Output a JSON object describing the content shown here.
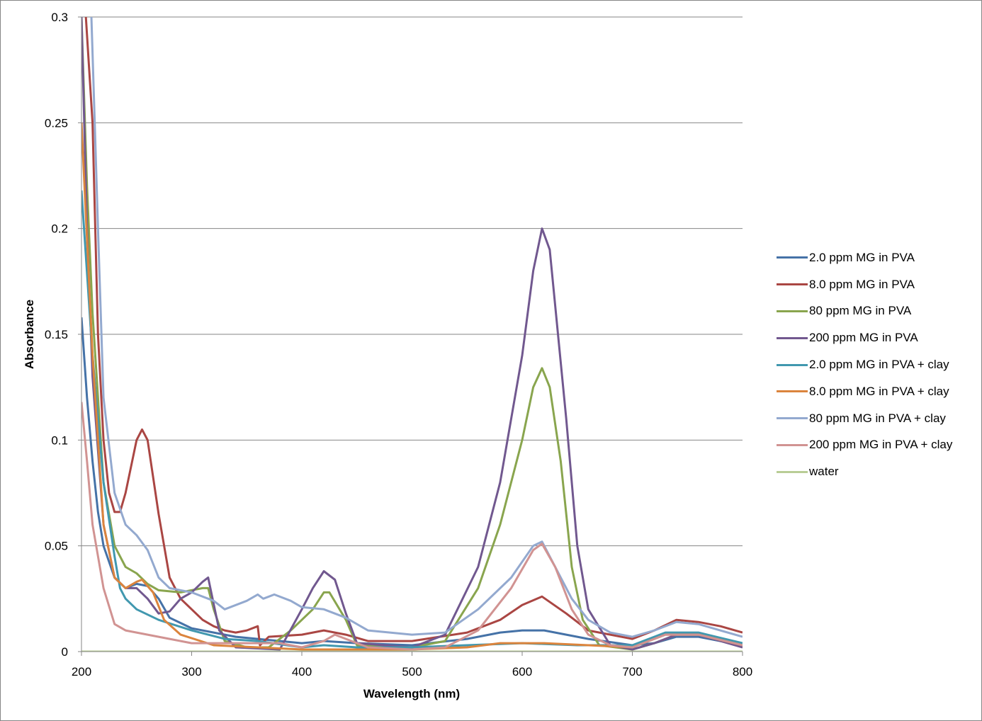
{
  "chart_data": {
    "type": "line",
    "title": "",
    "xlabel": "Wavelength (nm)",
    "ylabel": "Absorbance",
    "xlim": [
      200,
      800
    ],
    "ylim": [
      0,
      0.3
    ],
    "xticks": [
      "200",
      "300",
      "400",
      "500",
      "600",
      "700",
      "800"
    ],
    "yticks": [
      "0",
      "0.05",
      "0.1",
      "0.15",
      "0.2",
      "0.25",
      "0.3"
    ],
    "grid": "horizontal",
    "legend_position": "right",
    "series": [
      {
        "name": "2.0 ppm MG in PVA",
        "color": "#4572A7",
        "points": [
          [
            200,
            0.158
          ],
          [
            205,
            0.12
          ],
          [
            210,
            0.09
          ],
          [
            215,
            0.066
          ],
          [
            220,
            0.05
          ],
          [
            230,
            0.035
          ],
          [
            240,
            0.03
          ],
          [
            250,
            0.032
          ],
          [
            260,
            0.031
          ],
          [
            270,
            0.025
          ],
          [
            280,
            0.016
          ],
          [
            300,
            0.011
          ],
          [
            320,
            0.009
          ],
          [
            340,
            0.007
          ],
          [
            360,
            0.006
          ],
          [
            400,
            0.004
          ],
          [
            420,
            0.005
          ],
          [
            450,
            0.004
          ],
          [
            500,
            0.003
          ],
          [
            550,
            0.006
          ],
          [
            580,
            0.009
          ],
          [
            600,
            0.01
          ],
          [
            620,
            0.01
          ],
          [
            640,
            0.008
          ],
          [
            660,
            0.006
          ],
          [
            700,
            0.003
          ],
          [
            720,
            0.004
          ],
          [
            740,
            0.007
          ],
          [
            760,
            0.007
          ],
          [
            780,
            0.005
          ],
          [
            800,
            0.003
          ]
        ]
      },
      {
        "name": "8.0 ppm MG in PVA",
        "color": "#AA4643",
        "points": [
          [
            204,
            0.3
          ],
          [
            210,
            0.25
          ],
          [
            215,
            0.15
          ],
          [
            220,
            0.1
          ],
          [
            225,
            0.075
          ],
          [
            230,
            0.066
          ],
          [
            235,
            0.066
          ],
          [
            240,
            0.075
          ],
          [
            250,
            0.1
          ],
          [
            255,
            0.105
          ],
          [
            260,
            0.1
          ],
          [
            270,
            0.065
          ],
          [
            280,
            0.035
          ],
          [
            290,
            0.025
          ],
          [
            300,
            0.02
          ],
          [
            310,
            0.015
          ],
          [
            320,
            0.012
          ],
          [
            330,
            0.01
          ],
          [
            340,
            0.009
          ],
          [
            350,
            0.01
          ],
          [
            360,
            0.012
          ],
          [
            362,
            0.003
          ],
          [
            370,
            0.007
          ],
          [
            400,
            0.008
          ],
          [
            420,
            0.01
          ],
          [
            440,
            0.008
          ],
          [
            460,
            0.005
          ],
          [
            500,
            0.005
          ],
          [
            550,
            0.009
          ],
          [
            580,
            0.015
          ],
          [
            600,
            0.022
          ],
          [
            618,
            0.026
          ],
          [
            640,
            0.018
          ],
          [
            660,
            0.01
          ],
          [
            700,
            0.006
          ],
          [
            720,
            0.01
          ],
          [
            740,
            0.015
          ],
          [
            760,
            0.014
          ],
          [
            780,
            0.012
          ],
          [
            800,
            0.009
          ]
        ]
      },
      {
        "name": "80 ppm MG in PVA",
        "color": "#89A54E",
        "points": [
          [
            200,
            0.3
          ],
          [
            205,
            0.22
          ],
          [
            210,
            0.16
          ],
          [
            220,
            0.08
          ],
          [
            230,
            0.05
          ],
          [
            240,
            0.04
          ],
          [
            250,
            0.037
          ],
          [
            260,
            0.032
          ],
          [
            270,
            0.029
          ],
          [
            290,
            0.028
          ],
          [
            310,
            0.03
          ],
          [
            315,
            0.03
          ],
          [
            320,
            0.02
          ],
          [
            330,
            0.005
          ],
          [
            350,
            0.002
          ],
          [
            370,
            0.002
          ],
          [
            390,
            0.01
          ],
          [
            410,
            0.02
          ],
          [
            420,
            0.028
          ],
          [
            425,
            0.028
          ],
          [
            440,
            0.015
          ],
          [
            450,
            0.003
          ],
          [
            500,
            0.002
          ],
          [
            530,
            0.005
          ],
          [
            560,
            0.03
          ],
          [
            580,
            0.06
          ],
          [
            600,
            0.1
          ],
          [
            610,
            0.125
          ],
          [
            618,
            0.134
          ],
          [
            625,
            0.125
          ],
          [
            635,
            0.09
          ],
          [
            645,
            0.04
          ],
          [
            655,
            0.015
          ],
          [
            670,
            0.003
          ],
          [
            700,
            0.001
          ],
          [
            720,
            0.004
          ],
          [
            740,
            0.008
          ],
          [
            760,
            0.008
          ],
          [
            780,
            0.006
          ],
          [
            800,
            0.002
          ]
        ]
      },
      {
        "name": "200 ppm MG in PVA",
        "color": "#71588F",
        "points": [
          [
            200,
            0.3
          ],
          [
            205,
            0.2
          ],
          [
            210,
            0.13
          ],
          [
            220,
            0.06
          ],
          [
            230,
            0.035
          ],
          [
            240,
            0.03
          ],
          [
            250,
            0.03
          ],
          [
            260,
            0.025
          ],
          [
            270,
            0.018
          ],
          [
            280,
            0.019
          ],
          [
            290,
            0.025
          ],
          [
            300,
            0.028
          ],
          [
            310,
            0.033
          ],
          [
            315,
            0.035
          ],
          [
            325,
            0.01
          ],
          [
            340,
            0.002
          ],
          [
            380,
            0.001
          ],
          [
            400,
            0.02
          ],
          [
            410,
            0.03
          ],
          [
            420,
            0.038
          ],
          [
            430,
            0.034
          ],
          [
            440,
            0.018
          ],
          [
            450,
            0.004
          ],
          [
            500,
            0.002
          ],
          [
            530,
            0.008
          ],
          [
            560,
            0.04
          ],
          [
            580,
            0.08
          ],
          [
            600,
            0.14
          ],
          [
            610,
            0.18
          ],
          [
            618,
            0.2
          ],
          [
            625,
            0.19
          ],
          [
            640,
            0.11
          ],
          [
            650,
            0.05
          ],
          [
            660,
            0.02
          ],
          [
            680,
            0.003
          ],
          [
            700,
            0.001
          ],
          [
            720,
            0.004
          ],
          [
            740,
            0.008
          ],
          [
            760,
            0.008
          ],
          [
            800,
            0.002
          ]
        ]
      },
      {
        "name": "2.0 ppm MG in PVA + clay",
        "color": "#4198AF",
        "points": [
          [
            200,
            0.218
          ],
          [
            210,
            0.14
          ],
          [
            220,
            0.08
          ],
          [
            230,
            0.045
          ],
          [
            235,
            0.03
          ],
          [
            240,
            0.025
          ],
          [
            250,
            0.02
          ],
          [
            270,
            0.015
          ],
          [
            300,
            0.01
          ],
          [
            330,
            0.006
          ],
          [
            360,
            0.005
          ],
          [
            400,
            0.002
          ],
          [
            420,
            0.003
          ],
          [
            450,
            0.002
          ],
          [
            500,
            0.002
          ],
          [
            550,
            0.003
          ],
          [
            600,
            0.004
          ],
          [
            650,
            0.003
          ],
          [
            700,
            0.003
          ],
          [
            730,
            0.009
          ],
          [
            760,
            0.009
          ],
          [
            800,
            0.004
          ]
        ]
      },
      {
        "name": "8.0 ppm MG in PVA + clay",
        "color": "#DB843D",
        "points": [
          [
            200,
            0.25
          ],
          [
            210,
            0.14
          ],
          [
            220,
            0.06
          ],
          [
            230,
            0.035
          ],
          [
            240,
            0.03
          ],
          [
            250,
            0.033
          ],
          [
            255,
            0.034
          ],
          [
            265,
            0.028
          ],
          [
            275,
            0.015
          ],
          [
            290,
            0.008
          ],
          [
            320,
            0.003
          ],
          [
            360,
            0.002
          ],
          [
            400,
            0.001
          ],
          [
            450,
            0.001
          ],
          [
            500,
            0.001
          ],
          [
            550,
            0.002
          ],
          [
            580,
            0.004
          ],
          [
            620,
            0.004
          ],
          [
            660,
            0.003
          ],
          [
            700,
            0.002
          ],
          [
            730,
            0.008
          ],
          [
            760,
            0.008
          ],
          [
            800,
            0.003
          ]
        ]
      },
      {
        "name": "80 ppm MG in PVA + clay",
        "color": "#93A9CF",
        "points": [
          [
            209,
            0.3
          ],
          [
            212,
            0.25
          ],
          [
            215,
            0.2
          ],
          [
            220,
            0.12
          ],
          [
            230,
            0.075
          ],
          [
            240,
            0.06
          ],
          [
            250,
            0.055
          ],
          [
            260,
            0.048
          ],
          [
            270,
            0.035
          ],
          [
            280,
            0.03
          ],
          [
            300,
            0.028
          ],
          [
            320,
            0.024
          ],
          [
            330,
            0.02
          ],
          [
            350,
            0.024
          ],
          [
            360,
            0.027
          ],
          [
            365,
            0.025
          ],
          [
            375,
            0.027
          ],
          [
            390,
            0.024
          ],
          [
            400,
            0.021
          ],
          [
            420,
            0.02
          ],
          [
            440,
            0.016
          ],
          [
            460,
            0.01
          ],
          [
            500,
            0.008
          ],
          [
            530,
            0.009
          ],
          [
            560,
            0.02
          ],
          [
            590,
            0.035
          ],
          [
            610,
            0.05
          ],
          [
            618,
            0.052
          ],
          [
            630,
            0.04
          ],
          [
            645,
            0.025
          ],
          [
            660,
            0.015
          ],
          [
            680,
            0.009
          ],
          [
            700,
            0.007
          ],
          [
            720,
            0.01
          ],
          [
            740,
            0.014
          ],
          [
            760,
            0.013
          ],
          [
            800,
            0.007
          ]
        ]
      },
      {
        "name": "200 ppm MG in PVA + clay",
        "color": "#D19392",
        "points": [
          [
            200,
            0.118
          ],
          [
            205,
            0.09
          ],
          [
            210,
            0.06
          ],
          [
            220,
            0.03
          ],
          [
            230,
            0.013
          ],
          [
            240,
            0.01
          ],
          [
            260,
            0.008
          ],
          [
            280,
            0.006
          ],
          [
            300,
            0.004
          ],
          [
            340,
            0.004
          ],
          [
            380,
            0.004
          ],
          [
            400,
            0.002
          ],
          [
            420,
            0.005
          ],
          [
            430,
            0.008
          ],
          [
            440,
            0.006
          ],
          [
            460,
            0.002
          ],
          [
            500,
            0.001
          ],
          [
            530,
            0.002
          ],
          [
            560,
            0.01
          ],
          [
            590,
            0.03
          ],
          [
            610,
            0.048
          ],
          [
            618,
            0.051
          ],
          [
            630,
            0.04
          ],
          [
            645,
            0.02
          ],
          [
            660,
            0.008
          ],
          [
            680,
            0.003
          ],
          [
            700,
            0.002
          ],
          [
            730,
            0.008
          ],
          [
            760,
            0.008
          ],
          [
            800,
            0.003
          ]
        ]
      },
      {
        "name": "water",
        "color": "#B9CD96",
        "points": [
          [
            200,
            0
          ],
          [
            800,
            0
          ]
        ]
      }
    ]
  }
}
